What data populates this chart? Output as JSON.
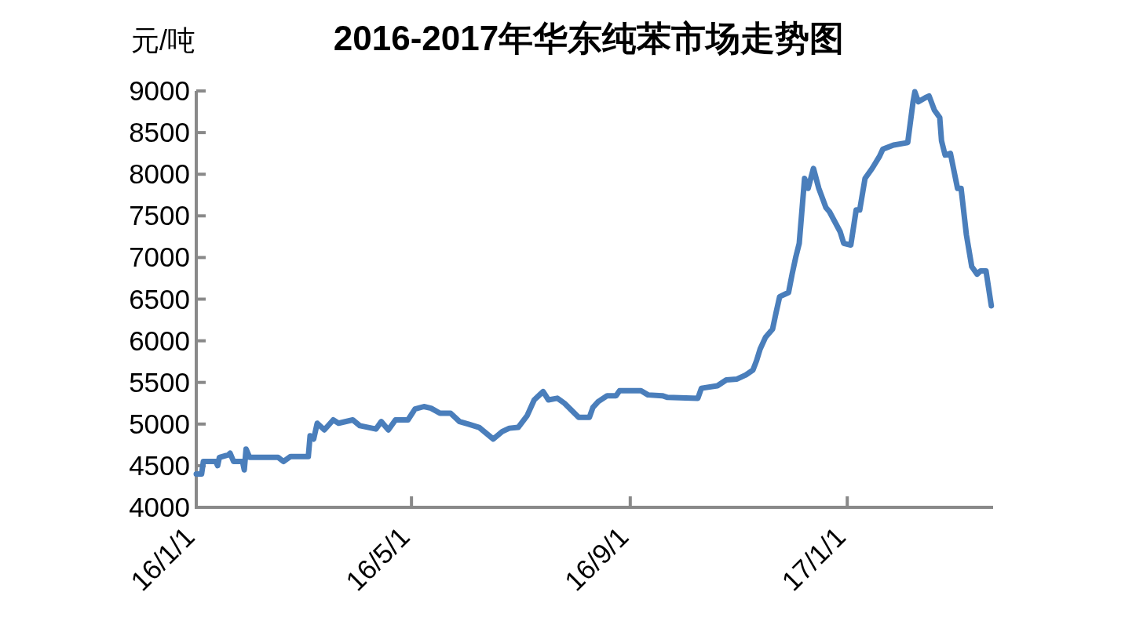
{
  "chart_data": {
    "type": "line",
    "title": "2016-2017年华东纯苯市场走势图",
    "ylabel": "元/吨",
    "x": [
      "2016-01-01",
      "2016-01-04",
      "2016-01-05",
      "2016-01-12",
      "2016-01-13",
      "2016-01-14",
      "2016-01-19",
      "2016-01-20",
      "2016-01-22",
      "2016-01-27",
      "2016-01-28",
      "2016-01-29",
      "2016-01-31",
      "2016-02-16",
      "2016-02-19",
      "2016-02-23",
      "2016-03-04",
      "2016-03-05",
      "2016-03-07",
      "2016-03-09",
      "2016-03-13",
      "2016-03-18",
      "2016-03-21",
      "2016-03-29",
      "2016-04-02",
      "2016-04-11",
      "2016-04-14",
      "2016-04-18",
      "2016-04-22",
      "2016-04-29",
      "2016-05-03",
      "2016-05-08",
      "2016-05-12",
      "2016-05-17",
      "2016-05-23",
      "2016-05-28",
      "2016-06-02",
      "2016-06-08",
      "2016-06-16",
      "2016-06-21",
      "2016-06-25",
      "2016-06-30",
      "2016-07-05",
      "2016-07-09",
      "2016-07-12",
      "2016-07-14",
      "2016-07-17",
      "2016-07-22",
      "2016-07-26",
      "2016-08-03",
      "2016-08-09",
      "2016-08-11",
      "2016-08-14",
      "2016-08-19",
      "2016-08-24",
      "2016-08-26",
      "2016-09-07",
      "2016-09-11",
      "2016-09-19",
      "2016-09-22",
      "2016-10-09",
      "2016-10-11",
      "2016-10-20",
      "2016-10-25",
      "2016-10-31",
      "2016-11-05",
      "2016-11-09",
      "2016-11-11",
      "2016-11-13",
      "2016-11-16",
      "2016-11-20",
      "2016-11-22",
      "2016-11-24",
      "2016-11-29",
      "2016-12-01",
      "2016-12-03",
      "2016-12-05",
      "2016-12-08",
      "2016-12-10",
      "2016-12-13",
      "2016-12-16",
      "2016-12-20",
      "2016-12-22",
      "2016-12-28",
      "2016-12-30",
      "2017-01-03",
      "2017-01-06",
      "2017-01-08",
      "2017-01-11",
      "2017-01-15",
      "2017-01-19",
      "2017-01-21",
      "2017-01-27",
      "2017-02-04",
      "2017-02-07",
      "2017-02-08",
      "2017-02-10",
      "2017-02-14",
      "2017-02-16",
      "2017-02-19",
      "2017-02-22",
      "2017-02-23",
      "2017-02-25",
      "2017-02-28",
      "2017-03-04",
      "2017-03-06",
      "2017-03-09",
      "2017-03-12",
      "2017-03-15",
      "2017-03-17",
      "2017-03-20",
      "2017-03-23"
    ],
    "series": [
      {
        "color": "#4a7ebb",
        "values": [
          4400,
          4400,
          4550,
          4550,
          4500,
          4600,
          4630,
          4650,
          4550,
          4550,
          4450,
          4700,
          4600,
          4600,
          4550,
          4610,
          4610,
          4860,
          4820,
          5010,
          4930,
          5050,
          5010,
          5050,
          4980,
          4940,
          5030,
          4930,
          5050,
          5050,
          5180,
          5210,
          5190,
          5130,
          5130,
          5030,
          5000,
          4960,
          4820,
          4910,
          4950,
          4960,
          5100,
          5290,
          5350,
          5390,
          5290,
          5310,
          5250,
          5080,
          5080,
          5200,
          5270,
          5340,
          5340,
          5400,
          5400,
          5350,
          5340,
          5320,
          5310,
          5430,
          5460,
          5530,
          5540,
          5590,
          5650,
          5760,
          5900,
          6040,
          6140,
          6340,
          6530,
          6580,
          6800,
          7000,
          7170,
          7950,
          7830,
          8070,
          7830,
          7600,
          7550,
          7310,
          7170,
          7150,
          7570,
          7570,
          7950,
          8070,
          8210,
          8300,
          8350,
          8380,
          8870,
          8990,
          8870,
          8920,
          8940,
          8770,
          8680,
          8400,
          8230,
          8250,
          7830,
          7830,
          7270,
          6890,
          6800,
          6840,
          6840,
          6420
        ]
      }
    ],
    "xlim": [
      "2016-01-01",
      "2017-03-24"
    ],
    "xticks": [
      {
        "value": "2016-01-01",
        "label": "16/1/1"
      },
      {
        "value": "2016-05-01",
        "label": "16/5/1"
      },
      {
        "value": "2016-09-01",
        "label": "16/9/1"
      },
      {
        "value": "2017-01-01",
        "label": "17/1/1"
      }
    ],
    "ylim": [
      4000,
      9000
    ],
    "yticks": [
      4000,
      4500,
      5000,
      5500,
      6000,
      6500,
      7000,
      7500,
      8000,
      8500,
      9000
    ]
  }
}
